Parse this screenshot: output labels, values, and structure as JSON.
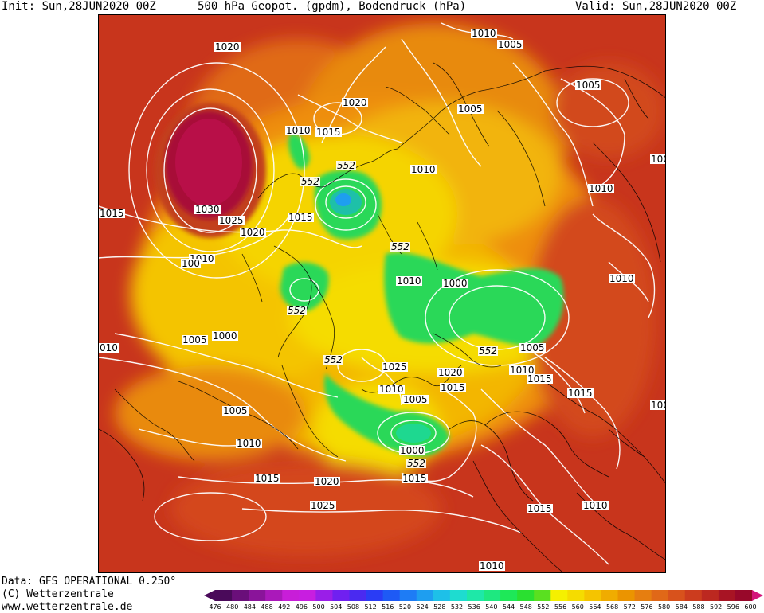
{
  "header": {
    "init": "Init: Sun,28JUN2020 00Z",
    "title": "500 hPa Geopot. (gpdm), Bodendruck (hPa)",
    "valid": "Valid: Sun,28JUN2020 00Z"
  },
  "footer": {
    "data_line": "Data: GFS OPERATIONAL 0.250°",
    "copyright": "(C) Wetterzentrale",
    "website": "www.wetterzentrale.de"
  },
  "legend": {
    "ticks": [
      "476",
      "480",
      "484",
      "488",
      "492",
      "496",
      "500",
      "504",
      "508",
      "512",
      "516",
      "520",
      "524",
      "528",
      "532",
      "536",
      "540",
      "544",
      "548",
      "552",
      "556",
      "560",
      "564",
      "568",
      "572",
      "576",
      "580",
      "584",
      "588",
      "592",
      "596",
      "600"
    ],
    "colors": [
      "#4a0a5a",
      "#6a0f7a",
      "#8a149a",
      "#aa19ba",
      "#c81ed8",
      "#c81ee0",
      "#9a1ee8",
      "#7020f0",
      "#4a2af0",
      "#2a3cf5",
      "#1e5af5",
      "#1e7cf5",
      "#1e9ef0",
      "#1ec0e8",
      "#1edcd0",
      "#1ee8a8",
      "#1ee880",
      "#1ee858",
      "#2ae030",
      "#5ae020",
      "#f5f000",
      "#f5dc00",
      "#f5c400",
      "#f0ac00",
      "#eb9400",
      "#e67e10",
      "#e06818",
      "#d8521c",
      "#cc3c1e",
      "#bc2820",
      "#a81424",
      "#98082a"
    ]
  },
  "isobar_labels": [
    "1020",
    "1010",
    "1005",
    "1005",
    "1005",
    "1020",
    "1010",
    "1015",
    "1030",
    "1025",
    "1015",
    "1020",
    "1010",
    "1010",
    "1015",
    "1010",
    "1000",
    "1010",
    "1005",
    "1000",
    "1010",
    "1005",
    "1025",
    "1020",
    "1010",
    "1015",
    "1010",
    "1015",
    "1005",
    "1005",
    "1015",
    "1010",
    "1015",
    "1000",
    "1015",
    "1020",
    "1025",
    "1015",
    "1010",
    "1010",
    "100",
    "100",
    "100",
    "010"
  ],
  "z552_labels": [
    "552",
    "552",
    "552",
    "552",
    "552",
    "552",
    "552"
  ]
}
